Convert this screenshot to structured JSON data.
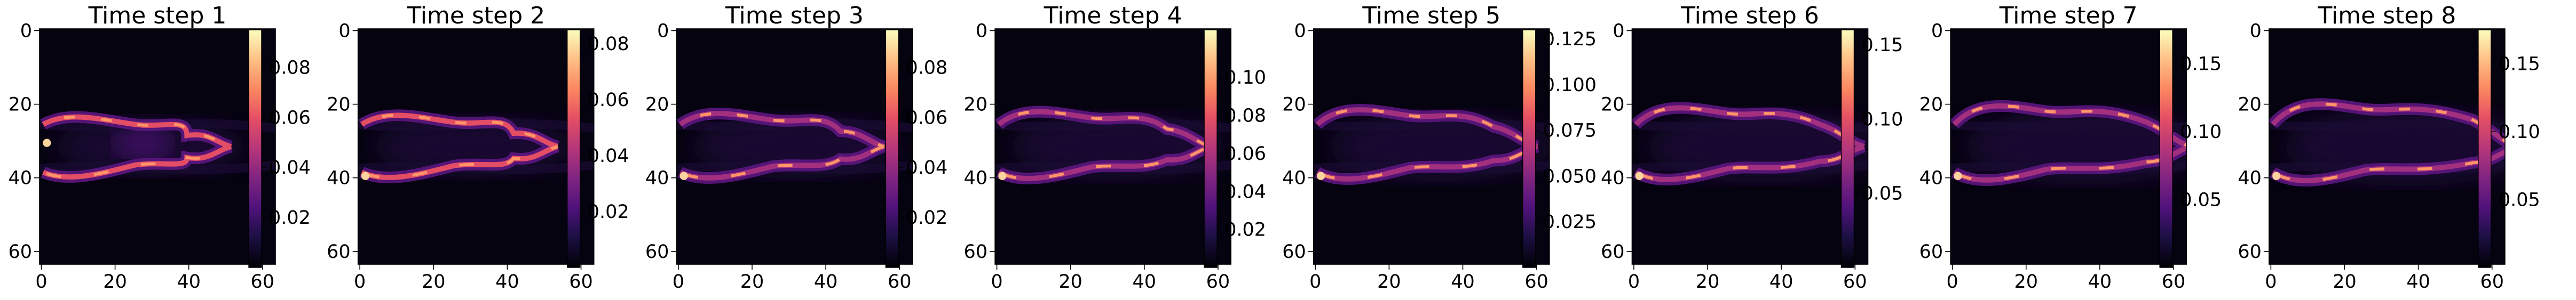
{
  "chart_data": [
    {
      "type": "heatmap",
      "title": "Time step 1",
      "x_ticks": [
        "0",
        "20",
        "40",
        "60"
      ],
      "y_ticks": [
        "0",
        "20",
        "40",
        "60"
      ],
      "grid": "64x64",
      "colormap": "magma",
      "colorbar": {
        "range": [
          0,
          0.095
        ],
        "ticks": [
          0.02,
          0.04,
          0.06,
          0.08
        ],
        "tick_labels": [
          "0.02",
          "0.04",
          "0.06",
          "0.08"
        ]
      }
    },
    {
      "type": "heatmap",
      "title": "Time step 2",
      "x_ticks": [
        "0",
        "20",
        "40",
        "60"
      ],
      "y_ticks": [
        "0",
        "20",
        "40",
        "60"
      ],
      "grid": "64x64",
      "colormap": "magma",
      "colorbar": {
        "range": [
          0,
          0.085
        ],
        "ticks": [
          0.02,
          0.04,
          0.06,
          0.08
        ],
        "tick_labels": [
          "0.02",
          "0.04",
          "0.06",
          "0.08"
        ]
      }
    },
    {
      "type": "heatmap",
      "title": "Time step 3",
      "x_ticks": [
        "0",
        "20",
        "40",
        "60"
      ],
      "y_ticks": [
        "0",
        "20",
        "40",
        "60"
      ],
      "grid": "64x64",
      "colormap": "magma",
      "colorbar": {
        "range": [
          0,
          0.095
        ],
        "ticks": [
          0.02,
          0.04,
          0.06,
          0.08
        ],
        "tick_labels": [
          "0.02",
          "0.04",
          "0.06",
          "0.08"
        ]
      }
    },
    {
      "type": "heatmap",
      "title": "Time step 4",
      "x_ticks": [
        "0",
        "20",
        "40",
        "60"
      ],
      "y_ticks": [
        "0",
        "20",
        "40",
        "60"
      ],
      "grid": "64x64",
      "colormap": "magma",
      "colorbar": {
        "range": [
          0,
          0.125
        ],
        "ticks": [
          0.02,
          0.04,
          0.06,
          0.08,
          0.1
        ],
        "tick_labels": [
          "0.02",
          "0.04",
          "0.06",
          "0.08",
          "0.10"
        ]
      }
    },
    {
      "type": "heatmap",
      "title": "Time step 5",
      "x_ticks": [
        "0",
        "20",
        "40",
        "60"
      ],
      "y_ticks": [
        "0",
        "20",
        "40",
        "60"
      ],
      "grid": "64x64",
      "colormap": "magma",
      "colorbar": {
        "range": [
          0,
          0.13
        ],
        "ticks": [
          0.025,
          0.05,
          0.075,
          0.1,
          0.125
        ],
        "tick_labels": [
          "0.025",
          "0.050",
          "0.075",
          "0.100",
          "0.125"
        ]
      }
    },
    {
      "type": "heatmap",
      "title": "Time step 6",
      "x_ticks": [
        "0",
        "20",
        "40",
        "60"
      ],
      "y_ticks": [
        "0",
        "20",
        "40",
        "60"
      ],
      "grid": "64x64",
      "colormap": "magma",
      "colorbar": {
        "range": [
          0,
          0.16
        ],
        "ticks": [
          0.05,
          0.1,
          0.15
        ],
        "tick_labels": [
          "0.05",
          "0.10",
          "0.15"
        ]
      }
    },
    {
      "type": "heatmap",
      "title": "Time step 7",
      "x_ticks": [
        "0",
        "20",
        "40",
        "60"
      ],
      "y_ticks": [
        "0",
        "20",
        "40",
        "60"
      ],
      "grid": "64x64",
      "colormap": "magma",
      "colorbar": {
        "range": [
          0,
          0.175
        ],
        "ticks": [
          0.05,
          0.1,
          0.15
        ],
        "tick_labels": [
          "0.05",
          "0.10",
          "0.15"
        ]
      }
    },
    {
      "type": "heatmap",
      "title": "Time step 8",
      "x_ticks": [
        "0",
        "20",
        "40",
        "60"
      ],
      "y_ticks": [
        "0",
        "20",
        "40",
        "60"
      ],
      "grid": "64x64",
      "colormap": "magma",
      "colorbar": {
        "range": [
          0,
          0.175
        ],
        "ticks": [
          0.05,
          0.1,
          0.15
        ],
        "tick_labels": [
          "0.05",
          "0.10",
          "0.15"
        ]
      }
    }
  ]
}
